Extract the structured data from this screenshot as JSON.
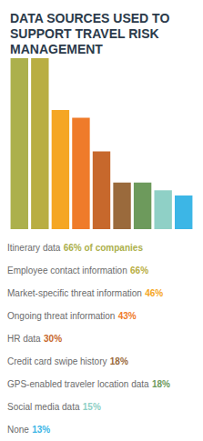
{
  "chart_data": {
    "type": "bar",
    "title": "DATA SOURCES USED TO SUPPORT TRAVEL RISK MANAGEMENT",
    "categories": [
      "Itinerary data",
      "Employee contact information",
      "Market-specific threat information",
      "Ongoing threat information",
      "HR data",
      "Credit card swipe history",
      "GPS-enabled traveler location data",
      "Social media data",
      "None"
    ],
    "values": [
      66,
      66,
      46,
      43,
      30,
      18,
      18,
      15,
      13
    ],
    "value_labels": [
      "66% of companies",
      "66%",
      "46%",
      "43%",
      "30%",
      "18%",
      "18%",
      "15%",
      "13%"
    ],
    "colors": [
      "#acb04c",
      "#b9ae42",
      "#f5a623",
      "#ef7b2a",
      "#c7682c",
      "#9a6a3c",
      "#6d9a5c",
      "#8fd0c6",
      "#3cb6e6"
    ],
    "ylim": [
      0,
      66
    ],
    "tick_labels": false,
    "grid": false
  }
}
